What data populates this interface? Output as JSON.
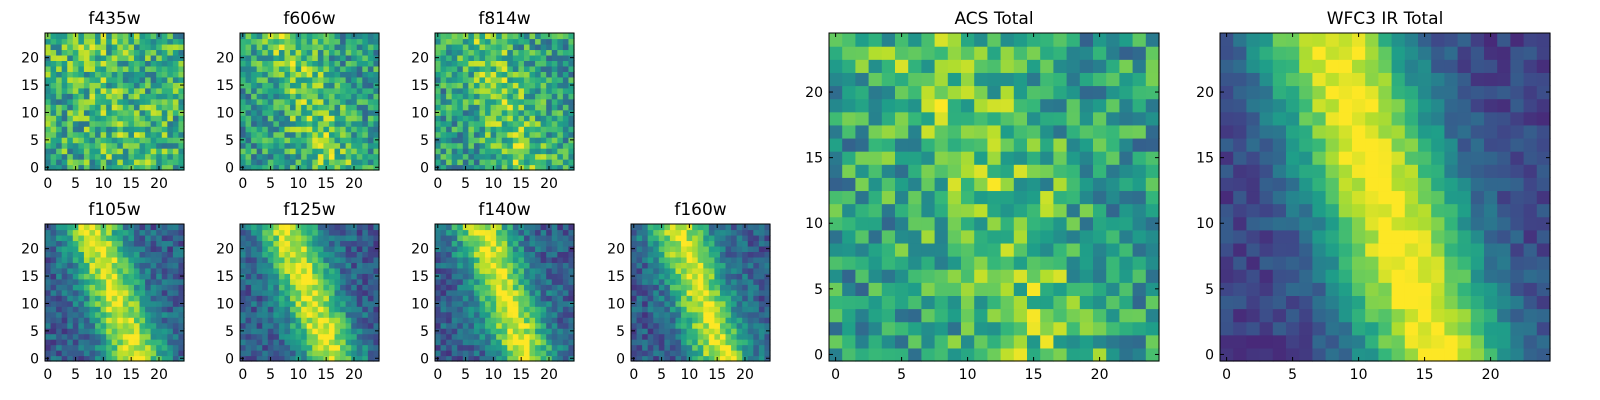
{
  "chart_data": {
    "type": "heatmap",
    "colormap": "viridis",
    "grid_size": 25,
    "value_range": [
      0,
      1
    ],
    "panels": [
      {
        "title": "f435w",
        "seed": 11,
        "profile": "noise",
        "xticks": [
          0,
          5,
          10,
          15,
          20
        ],
        "yticks": [
          0,
          5,
          10,
          15,
          20
        ]
      },
      {
        "title": "f606w",
        "seed": 23,
        "profile": "weak-band",
        "xticks": [
          0,
          5,
          10,
          15,
          20
        ],
        "yticks": [
          0,
          5,
          10,
          15,
          20
        ]
      },
      {
        "title": "f814w",
        "seed": 37,
        "profile": "weak-band",
        "xticks": [
          0,
          5,
          10,
          15,
          20
        ],
        "yticks": [
          0,
          5,
          10,
          15,
          20
        ]
      },
      {
        "title": "f105w",
        "seed": 41,
        "profile": "band",
        "xticks": [
          0,
          5,
          10,
          15,
          20
        ],
        "yticks": [
          0,
          5,
          10,
          15,
          20
        ]
      },
      {
        "title": "f125w",
        "seed": 53,
        "profile": "band",
        "xticks": [
          0,
          5,
          10,
          15,
          20
        ],
        "yticks": [
          0,
          5,
          10,
          15,
          20
        ]
      },
      {
        "title": "f140w",
        "seed": 67,
        "profile": "band",
        "xticks": [
          0,
          5,
          10,
          15,
          20
        ],
        "yticks": [
          0,
          5,
          10,
          15,
          20
        ]
      },
      {
        "title": "f160w",
        "seed": 79,
        "profile": "band",
        "xticks": [
          0,
          5,
          10,
          15,
          20
        ],
        "yticks": [
          0,
          5,
          10,
          15,
          20
        ]
      },
      {
        "title": "ACS Total",
        "seed": 83,
        "profile": "weak-band",
        "xticks": [
          0,
          5,
          10,
          15,
          20
        ],
        "yticks": [
          0,
          5,
          10,
          15,
          20
        ]
      },
      {
        "title": "WFC3 IR Total",
        "seed": 97,
        "profile": "strong-band",
        "xticks": [
          0,
          5,
          10,
          15,
          20
        ],
        "yticks": [
          0,
          5,
          10,
          15,
          20
        ]
      }
    ]
  }
}
